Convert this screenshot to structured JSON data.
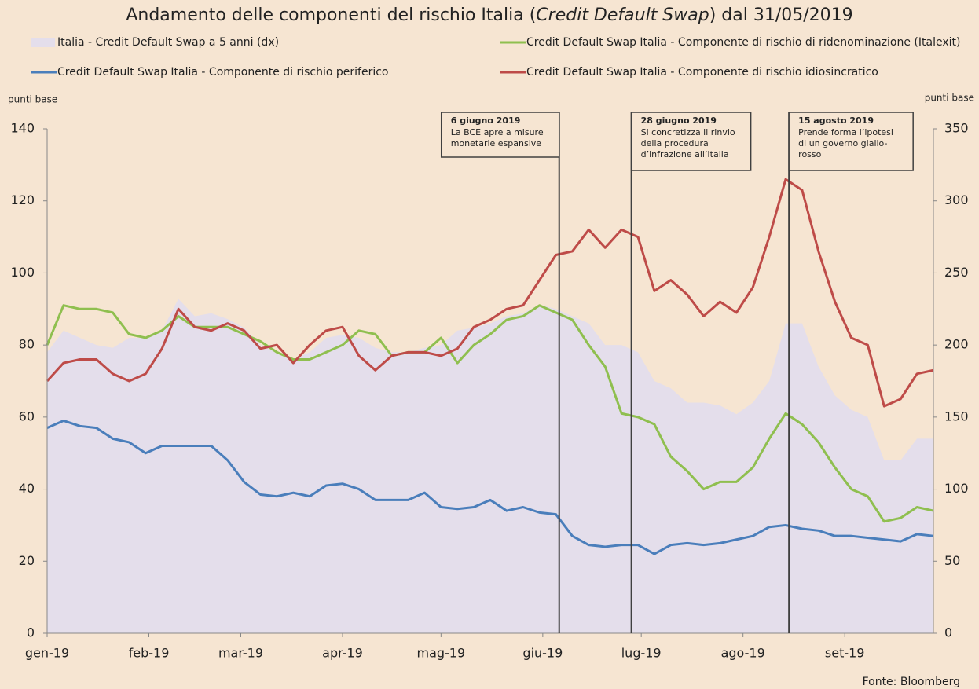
{
  "chart_data": {
    "type": "combo",
    "title_parts": [
      "Andamento delle componenti del rischio Italia (",
      "Credit Default Swap",
      ") dal 31/05/2019"
    ],
    "ylabel": "punti base",
    "y2label": "punti base",
    "source": "Fonte: Bloomberg",
    "x": [
      1,
      6,
      11,
      16,
      21,
      26,
      31,
      36,
      41,
      46,
      51,
      56,
      61,
      66,
      71,
      76,
      81,
      86,
      91,
      96,
      101,
      106,
      111,
      116,
      121,
      126,
      131,
      136,
      141,
      146,
      151,
      156,
      161,
      166,
      171,
      176,
      181,
      186,
      191,
      196,
      201,
      206,
      211,
      216,
      221,
      226,
      231,
      236,
      241,
      246,
      251,
      256,
      261,
      266,
      271
    ],
    "xlim": [
      1,
      271
    ],
    "xticks": [
      {
        "value": 1,
        "label": "gen-19"
      },
      {
        "value": 32,
        "label": "feb-19"
      },
      {
        "value": 60,
        "label": "mar-19"
      },
      {
        "value": 91,
        "label": "apr-19"
      },
      {
        "value": 121,
        "label": "mag-19"
      },
      {
        "value": 152,
        "label": "giu-19"
      },
      {
        "value": 182,
        "label": "lug-19"
      },
      {
        "value": 213,
        "label": "ago-19"
      },
      {
        "value": 244,
        "label": "set-19"
      }
    ],
    "ylim": [
      0,
      140
    ],
    "yticks": [
      0,
      20,
      40,
      60,
      80,
      100,
      120,
      140
    ],
    "y2lim": [
      0,
      350
    ],
    "y2ticks": [
      0,
      50,
      100,
      150,
      200,
      250,
      300,
      350
    ],
    "series": [
      {
        "name": "Italia - Credit Default Swap a 5 anni (dx)",
        "kind": "area",
        "axis": "y2",
        "color": "#e4deeb",
        "values": [
          195,
          210,
          205,
          200,
          198,
          205,
          205,
          210,
          232,
          220,
          222,
          218,
          212,
          200,
          195,
          190,
          195,
          205,
          207,
          205,
          198,
          195,
          195,
          198,
          200,
          210,
          212,
          215,
          220,
          222,
          228,
          225,
          220,
          215,
          200,
          200,
          195,
          175,
          170,
          160,
          160,
          158,
          152,
          160,
          175,
          215,
          215,
          185,
          165,
          155,
          150,
          120,
          120,
          135,
          135
        ]
      },
      {
        "name": "Credit Default Swap Italia - Componente di rischio di ridenominazione (Italexit)",
        "kind": "line",
        "color": "#8fbf4f",
        "values": [
          80,
          91,
          90,
          90,
          89,
          83,
          82,
          84,
          88,
          85,
          85,
          85,
          83,
          81,
          78,
          76,
          76,
          78,
          80,
          84,
          83,
          77,
          78,
          78,
          82,
          75,
          80,
          83,
          87,
          88,
          91,
          89,
          87,
          80,
          74,
          61,
          60,
          58,
          49,
          45,
          40,
          42,
          42,
          46,
          54,
          61,
          58,
          53,
          46,
          40,
          38,
          31,
          32,
          35,
          34
        ]
      },
      {
        "name": "Credit Default Swap Italia - Componente di rischio periferico",
        "kind": "line",
        "color": "#4a7ebb",
        "values": [
          57,
          59,
          57.5,
          57,
          54,
          53,
          50,
          52,
          52,
          52,
          52,
          48,
          42,
          38.5,
          38,
          39,
          38,
          41,
          41.5,
          40,
          37,
          37,
          37,
          39,
          35,
          34.5,
          35,
          37,
          34,
          35,
          33.5,
          33,
          27,
          24.5,
          24,
          24.5,
          24.5,
          22,
          24.5,
          25,
          24.5,
          25,
          26,
          27,
          29.5,
          30,
          29,
          28.5,
          27,
          27,
          26.5,
          26,
          25.5,
          27.5,
          27
        ]
      },
      {
        "name": "Credit Default Swap Italia - Componente di rischio idiosincratico",
        "kind": "line",
        "color": "#be4b48",
        "values": [
          70,
          75,
          76,
          76,
          72,
          70,
          72,
          79,
          90,
          85,
          84,
          86,
          84,
          79,
          80,
          75,
          80,
          84,
          85,
          77,
          73,
          77,
          78,
          78,
          77,
          79,
          85,
          87,
          90,
          91,
          98,
          105,
          106,
          112,
          107,
          112,
          110,
          95,
          98,
          94,
          88,
          92,
          89,
          96,
          110,
          126,
          123,
          106,
          92,
          82,
          80,
          63,
          65,
          72,
          73
        ]
      }
    ],
    "annotations": [
      {
        "x": 157,
        "title": "6 giugno 2019",
        "lines": [
          "La BCE apre a misure",
          "monetarie espansive"
        ]
      },
      {
        "x": 179,
        "title": "28 giugno 2019",
        "lines": [
          "Si concretizza il rinvio",
          "della procedura",
          "d’infrazione all’Italia"
        ]
      },
      {
        "x": 227,
        "title": "15 agosto 2019",
        "lines": [
          "Prende forma l’ipotesi",
          "di un governo giallo-",
          "rosso"
        ]
      }
    ]
  }
}
